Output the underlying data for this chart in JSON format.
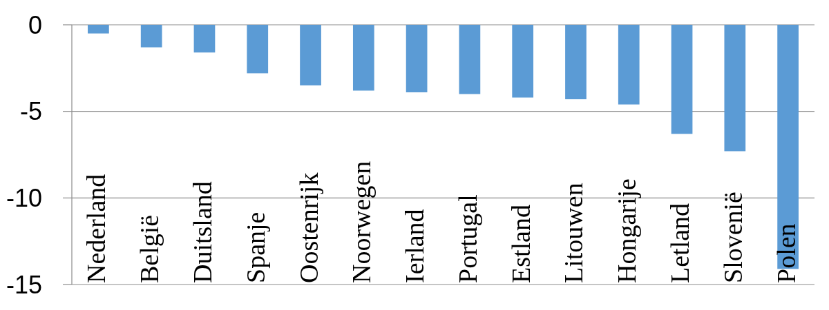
{
  "chart_data": {
    "type": "bar",
    "categories": [
      "Nederland",
      "België",
      "Duitsland",
      "Spanje",
      "Oostenrijk",
      "Noorwegen",
      "Ierland",
      "Portugal",
      "Estland",
      "Litouwen",
      "Hongarije",
      "Letland",
      "Slovenië",
      "Polen"
    ],
    "values": [
      -0.5,
      -1.3,
      -1.6,
      -2.8,
      -3.5,
      -3.8,
      -3.9,
      -4.0,
      -4.2,
      -4.3,
      -4.6,
      -6.3,
      -7.3,
      -14.1
    ],
    "color": "#5b9bd5",
    "ylim": [
      -15,
      0
    ],
    "yticks": [
      0,
      -5,
      -10,
      -15
    ],
    "grid": "y"
  }
}
